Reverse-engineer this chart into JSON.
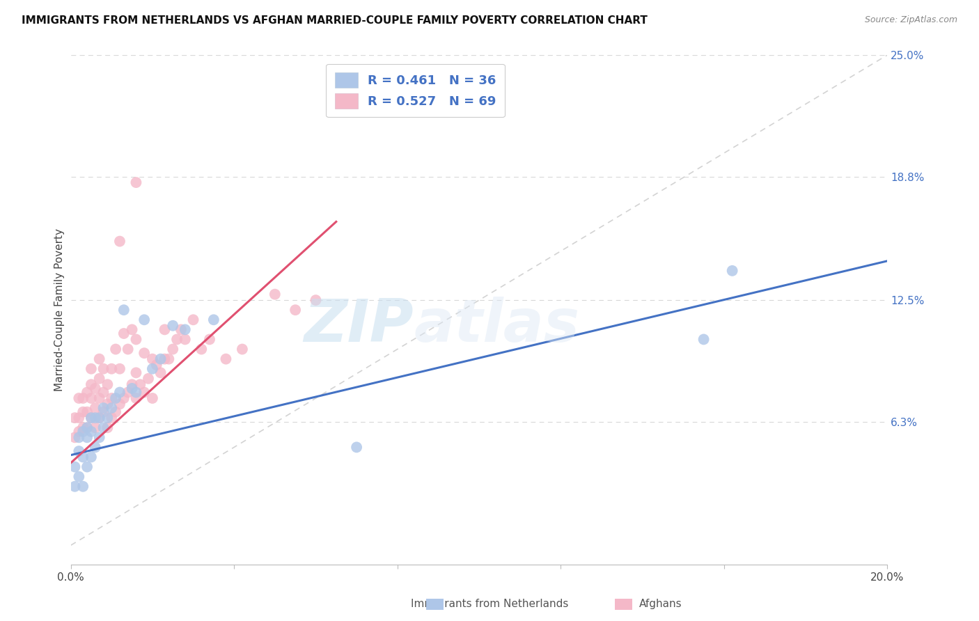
{
  "title": "IMMIGRANTS FROM NETHERLANDS VS AFGHAN MARRIED-COUPLE FAMILY POVERTY CORRELATION CHART",
  "source": "Source: ZipAtlas.com",
  "ylabel": "Married-Couple Family Poverty",
  "xlim": [
    0.0,
    0.2
  ],
  "ylim": [
    -0.01,
    0.25
  ],
  "ytick_labels_right": [
    "6.3%",
    "12.5%",
    "18.8%",
    "25.0%"
  ],
  "ytick_values_right": [
    0.063,
    0.125,
    0.188,
    0.25
  ],
  "legend_label_color": "#4472c4",
  "watermark_zip": "ZIP",
  "watermark_atlas": "atlas",
  "background_color": "#ffffff",
  "grid_color": "#d8d8d8",
  "blue_scatter_color": "#aec6e8",
  "pink_scatter_color": "#f4b8c8",
  "blue_line_color": "#4472c4",
  "pink_line_color": "#e05070",
  "diag_line_color": "#c8c8c8",
  "blue_x": [
    0.001,
    0.001,
    0.002,
    0.002,
    0.002,
    0.003,
    0.003,
    0.003,
    0.004,
    0.004,
    0.004,
    0.005,
    0.005,
    0.005,
    0.006,
    0.006,
    0.007,
    0.007,
    0.008,
    0.008,
    0.009,
    0.01,
    0.011,
    0.012,
    0.013,
    0.015,
    0.016,
    0.018,
    0.02,
    0.022,
    0.025,
    0.028,
    0.035,
    0.07,
    0.155,
    0.162
  ],
  "blue_y": [
    0.03,
    0.04,
    0.035,
    0.048,
    0.055,
    0.03,
    0.045,
    0.058,
    0.04,
    0.055,
    0.06,
    0.045,
    0.058,
    0.065,
    0.05,
    0.065,
    0.055,
    0.065,
    0.06,
    0.07,
    0.065,
    0.07,
    0.075,
    0.078,
    0.12,
    0.08,
    0.078,
    0.115,
    0.09,
    0.095,
    0.112,
    0.11,
    0.115,
    0.05,
    0.105,
    0.14
  ],
  "pink_x": [
    0.001,
    0.001,
    0.002,
    0.002,
    0.002,
    0.003,
    0.003,
    0.003,
    0.004,
    0.004,
    0.004,
    0.005,
    0.005,
    0.005,
    0.005,
    0.006,
    0.006,
    0.006,
    0.007,
    0.007,
    0.007,
    0.007,
    0.008,
    0.008,
    0.008,
    0.009,
    0.009,
    0.009,
    0.01,
    0.01,
    0.01,
    0.011,
    0.011,
    0.012,
    0.012,
    0.013,
    0.013,
    0.014,
    0.014,
    0.015,
    0.015,
    0.016,
    0.016,
    0.016,
    0.017,
    0.018,
    0.018,
    0.019,
    0.02,
    0.02,
    0.021,
    0.022,
    0.023,
    0.023,
    0.024,
    0.025,
    0.026,
    0.027,
    0.028,
    0.03,
    0.032,
    0.034,
    0.038,
    0.042,
    0.05,
    0.055,
    0.06,
    0.012,
    0.016
  ],
  "pink_y": [
    0.055,
    0.065,
    0.058,
    0.065,
    0.075,
    0.06,
    0.068,
    0.075,
    0.06,
    0.068,
    0.078,
    0.065,
    0.075,
    0.082,
    0.09,
    0.06,
    0.07,
    0.08,
    0.065,
    0.075,
    0.085,
    0.095,
    0.068,
    0.078,
    0.09,
    0.06,
    0.072,
    0.082,
    0.065,
    0.075,
    0.09,
    0.068,
    0.1,
    0.072,
    0.09,
    0.075,
    0.108,
    0.078,
    0.1,
    0.082,
    0.11,
    0.075,
    0.088,
    0.105,
    0.082,
    0.078,
    0.098,
    0.085,
    0.075,
    0.095,
    0.092,
    0.088,
    0.095,
    0.11,
    0.095,
    0.1,
    0.105,
    0.11,
    0.105,
    0.115,
    0.1,
    0.105,
    0.095,
    0.1,
    0.128,
    0.12,
    0.125,
    0.155,
    0.185
  ],
  "blue_trend": [
    0.0,
    0.2,
    0.046,
    0.145
  ],
  "pink_trend": [
    0.0,
    0.065,
    0.042,
    0.165
  ]
}
